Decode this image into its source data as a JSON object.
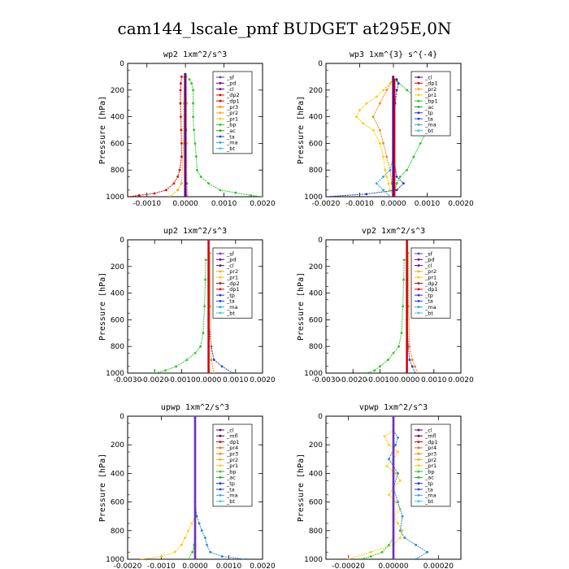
{
  "figure": {
    "title": "cam144_lscale_pmf  BUDGET at295E,0N"
  },
  "chart_data": [
    {
      "type": "line",
      "title": "wp2   1xm^2/s^3",
      "ylabel": "Pressure [hPa]",
      "xlim": [
        -0.0015,
        0.002
      ],
      "ylim": [
        1000,
        0
      ],
      "xticks": [
        -0.001,
        0.0,
        0.001,
        0.002
      ],
      "xtick_labels": [
        "-0.0010",
        "0.0000",
        "0.0010",
        "0.0020"
      ],
      "yticks": [
        0,
        200,
        400,
        600,
        800,
        1000
      ],
      "legend": [
        "_sf",
        "_pd",
        "_cl",
        "_dp2",
        "_dp1",
        "_pr3",
        "_pr2",
        "_pr1",
        "_bp",
        "_ac",
        "_ta",
        "_ma",
        "_bt"
      ],
      "series": [
        {
          "name": "_dp2",
          "color": "#dd0000",
          "y": [
            100,
            150,
            200,
            300,
            400,
            500,
            600,
            700,
            800,
            850,
            900,
            950,
            975,
            990,
            1000
          ],
          "x": [
            -0.0001,
            -0.00012,
            -0.00013,
            -0.00013,
            -0.00012,
            -0.00011,
            -0.0001,
            -0.0001,
            -0.00015,
            -0.0002,
            -0.0003,
            -0.0005,
            -0.0008,
            -0.0012,
            -0.0015
          ]
        },
        {
          "name": "_bp",
          "color": "#22cc22",
          "y": [
            120,
            150,
            200,
            300,
            400,
            500,
            600,
            700,
            800,
            850,
            900,
            950,
            970,
            990,
            1000
          ],
          "x": [
            0.0001,
            0.00016,
            0.0002,
            0.0002,
            0.0002,
            0.00022,
            0.00025,
            0.00028,
            0.0003,
            0.0004,
            0.0006,
            0.0009,
            0.0013,
            0.0017,
            0.002
          ]
        },
        {
          "name": "_pr1",
          "color": "#ffaa00",
          "y": [
            100,
            300,
            600,
            900,
            950,
            1000
          ],
          "x": [
            -3e-05,
            -4e-05,
            -5e-05,
            -0.0001,
            -0.0002,
            -0.0004
          ]
        },
        {
          "name": "_pr3",
          "color": "#ff8800",
          "y": [
            100,
            300,
            600,
            900,
            1000
          ],
          "x": [
            2e-05,
            3e-05,
            3e-05,
            4e-05,
            6e-05
          ]
        },
        {
          "name": "_ta",
          "color": "#2244cc",
          "y": [
            100,
            500,
            900,
            1000
          ],
          "x": [
            0.0,
            1e-05,
            2e-05,
            3e-05
          ]
        },
        {
          "name": "_sf",
          "color": "#6633cc",
          "y": [
            80,
            1000
          ],
          "x": [
            0.0,
            0.0
          ]
        },
        {
          "name": "_cl",
          "color": "#660088",
          "y": [
            80,
            1000
          ],
          "x": [
            -1e-05,
            -1e-05
          ]
        }
      ]
    },
    {
      "type": "line",
      "title": "wp3   1xm^{3} s^{-4}",
      "ylabel": "Pressure [hPa]",
      "xlim": [
        -0.002,
        0.002
      ],
      "ylim": [
        1000,
        0
      ],
      "xticks": [
        -0.002,
        -0.001,
        0.0,
        0.001,
        0.002
      ],
      "xtick_labels": [
        "-0.0020",
        "-0.0010",
        "0.0000",
        "0.0010",
        "0.0020"
      ],
      "yticks": [
        0,
        200,
        400,
        600,
        800,
        1000
      ],
      "legend": [
        "_cl",
        "_dp1",
        "_pr2",
        "_pr1",
        "_bp1",
        "_ac",
        "_tp",
        "_ta",
        "_ma",
        "_bt"
      ],
      "series": [
        {
          "name": "_pr1",
          "color": "#ffcc00",
          "y": [
            100,
            150,
            200,
            250,
            300,
            350,
            400,
            450,
            500,
            600,
            700,
            800,
            850,
            900,
            950,
            1000
          ],
          "x": [
            0.0,
            -0.0001,
            -0.0003,
            -0.0005,
            -0.0008,
            -0.001,
            -0.0011,
            -0.0009,
            -0.0006,
            -0.0004,
            -0.0003,
            -0.00025,
            -0.0002,
            -0.00015,
            -0.0001,
            0.0
          ]
        },
        {
          "name": "_pr2",
          "color": "#ee8800",
          "y": [
            120,
            200,
            300,
            400,
            500,
            600,
            700,
            800,
            900,
            1000
          ],
          "x": [
            0.0,
            -0.0002,
            -0.0004,
            -0.0006,
            -0.0004,
            -0.0003,
            -0.0002,
            -0.0001,
            -5e-05,
            0.0
          ]
        },
        {
          "name": "_bp1",
          "color": "#22cc22",
          "y": [
            130,
            200,
            300,
            400,
            450,
            500,
            600,
            700,
            800,
            850,
            900,
            950,
            1000
          ],
          "x": [
            0.0001,
            0.0004,
            0.0009,
            0.0014,
            0.0013,
            0.001,
            0.0008,
            0.0006,
            0.0004,
            0.0002,
            0.0001,
            5e-05,
            0.0
          ]
        },
        {
          "name": "_tp",
          "color": "#2233cc",
          "y": [
            120,
            150,
            200,
            300,
            500,
            700,
            850,
            900,
            950,
            980,
            1000
          ],
          "x": [
            0.0001,
            0.00015,
            0.0001,
            5e-05,
            0.0,
            0.0,
            0.0001,
            0.0003,
            0.0001,
            -0.0008,
            -0.002
          ]
        },
        {
          "name": "_ma",
          "color": "#33aacc",
          "y": [
            700,
            800,
            850,
            900,
            950,
            1000
          ],
          "x": [
            0.0,
            -0.0001,
            -0.0003,
            -0.0005,
            -0.0003,
            -0.0001
          ]
        },
        {
          "name": "_dp1",
          "color": "#dd0000",
          "y": [
            120,
            1000
          ],
          "x": [
            3e-05,
            3e-05
          ]
        },
        {
          "name": "_cl",
          "color": "#660088",
          "y": [
            100,
            1000
          ],
          "x": [
            -1e-05,
            -1e-05
          ]
        }
      ]
    },
    {
      "type": "line",
      "title": "up2   1xm^2/s^3",
      "ylabel": "Pressure [hPa]",
      "xlim": [
        -0.003,
        0.002
      ],
      "ylim": [
        1000,
        0
      ],
      "xticks": [
        -0.003,
        -0.002,
        -0.001,
        0.0,
        0.001,
        0.002
      ],
      "xtick_labels": [
        "-0.0030",
        "-0.0020",
        "-0.0010",
        "0.0000",
        "0.0010",
        "0.0020"
      ],
      "yticks": [
        0,
        200,
        400,
        600,
        800,
        1000
      ],
      "legend": [
        "_sf",
        "_pd",
        "_cl",
        "_pr2",
        "_pr1",
        "_dp2",
        "_dp1",
        "_tp",
        "_ta",
        "_ma",
        "_bt"
      ],
      "series": [
        {
          "name": "_dp2",
          "color": "#22cc22",
          "y": [
            150,
            300,
            500,
            700,
            800,
            850,
            900,
            950,
            980,
            1000
          ],
          "x": [
            -0.0001,
            -0.00012,
            -0.00015,
            -0.0002,
            -0.0003,
            -0.0005,
            -0.0008,
            -0.0012,
            -0.0016,
            -0.002
          ]
        },
        {
          "name": "_tp",
          "color": "#2244cc",
          "y": [
            300,
            600,
            800,
            900,
            950,
            1000
          ],
          "x": [
            0.0,
            0.0,
            0.0001,
            0.0002,
            0.0005,
            0.0009
          ]
        },
        {
          "name": "_pr2",
          "color": "#ff8800",
          "y": [
            100,
            500,
            900,
            1000
          ],
          "x": [
            5e-05,
            6e-05,
            0.0001,
            0.0002
          ]
        },
        {
          "name": "_sf",
          "color": "#6633cc",
          "y": [
            0,
            1000
          ],
          "x": [
            0.0,
            0.0
          ]
        },
        {
          "name": "_pd",
          "color": "#dd0000",
          "y": [
            0,
            1000
          ],
          "x": [
            0.0,
            0.0
          ]
        }
      ]
    },
    {
      "type": "line",
      "title": "vp2   1xm^2/s^3",
      "ylabel": "Pressure [hPa]",
      "xlim": [
        -0.003,
        0.002
      ],
      "ylim": [
        1000,
        0
      ],
      "xticks": [
        -0.003,
        -0.002,
        -0.001,
        0.0,
        0.001,
        0.002
      ],
      "xtick_labels": [
        "-0.0030",
        "-0.0020",
        "-0.0010",
        "0.0000",
        "0.0010",
        "0.0020"
      ],
      "yticks": [
        0,
        200,
        400,
        600,
        800,
        1000
      ],
      "legend": [
        "_sf",
        "_pd",
        "_cl",
        "_pr2",
        "_pr1",
        "_dp2",
        "_dp1",
        "_tp",
        "_ta",
        "_ma",
        "_bt"
      ],
      "series": [
        {
          "name": "_dp2",
          "color": "#22cc22",
          "y": [
            150,
            300,
            500,
            700,
            800,
            850,
            900,
            950,
            980,
            1000
          ],
          "x": [
            -0.0001,
            -0.00012,
            -0.00015,
            -0.0002,
            -0.0003,
            -0.0005,
            -0.0007,
            -0.001,
            -0.0012,
            -0.0015
          ]
        },
        {
          "name": "_tp",
          "color": "#2244cc",
          "y": [
            300,
            600,
            800,
            900,
            950,
            1000
          ],
          "x": [
            0.0,
            0.0,
            5e-05,
            0.0001,
            0.0002,
            0.0003
          ]
        },
        {
          "name": "_pr2",
          "color": "#ff8800",
          "y": [
            100,
            500,
            800,
            900,
            950,
            1000
          ],
          "x": [
            5e-05,
            6e-05,
            0.0001,
            0.0002,
            0.0003,
            0.0004
          ]
        },
        {
          "name": "_sf",
          "color": "#6633cc",
          "y": [
            0,
            1000
          ],
          "x": [
            0.0,
            0.0
          ]
        },
        {
          "name": "_pd",
          "color": "#dd0000",
          "y": [
            0,
            1000
          ],
          "x": [
            0.0,
            0.0
          ]
        }
      ]
    },
    {
      "type": "line",
      "title": "upwp   1xm^2/s^3",
      "ylabel": "Pressure [hPa]",
      "xlim": [
        -0.002,
        0.002
      ],
      "ylim": [
        1000,
        0
      ],
      "xticks": [
        -0.002,
        -0.001,
        0.0,
        0.001,
        0.002
      ],
      "xtick_labels": [
        "-0.0020",
        "-0.0010",
        "0.0000",
        "0.0010",
        "0.0020"
      ],
      "yticks": [
        0,
        200,
        400,
        600,
        800,
        1000
      ],
      "legend": [
        "_cl",
        "_mfl",
        "_dp1",
        "_pr4",
        "_pr3",
        "_pr2",
        "_pr1",
        "_bp",
        "_ac",
        "_tp",
        "_ta",
        "_ma",
        "_bt"
      ],
      "series": [
        {
          "name": "_pr1",
          "color": "#ffcc00",
          "y": [
            700,
            750,
            800,
            850,
            900,
            950,
            980,
            1000
          ],
          "x": [
            0.0,
            -0.0001,
            -0.0002,
            -0.0003,
            -0.0004,
            -0.0006,
            -0.001,
            -0.0016
          ]
        },
        {
          "name": "_tp",
          "color": "#2288cc",
          "y": [
            600,
            700,
            750,
            800,
            850,
            900,
            950,
            980,
            1000
          ],
          "x": [
            0.0,
            5e-05,
            0.00012,
            0.0002,
            0.0003,
            0.00035,
            0.00045,
            0.0008,
            0.0015
          ]
        },
        {
          "name": "_bp",
          "color": "#22cc22",
          "y": [
            850,
            900,
            950,
            1000
          ],
          "x": [
            0.0,
            -3e-05,
            -8e-05,
            -0.0002
          ]
        },
        {
          "name": "_dp1",
          "color": "#dd0000",
          "y": [
            0,
            1000
          ],
          "x": [
            0.0,
            0.0
          ]
        },
        {
          "name": "_cl",
          "color": "#6633cc",
          "y": [
            0,
            1000
          ],
          "x": [
            0.0,
            0.0
          ]
        }
      ]
    },
    {
      "type": "line",
      "title": "vpwp   1xm^2/s^3",
      "ylabel": "Pressure [hPa]",
      "xlim": [
        -0.0003,
        0.0003
      ],
      "ylim": [
        1000,
        0
      ],
      "xticks": [
        -0.0002,
        0.0,
        0.0002
      ],
      "xtick_labels": [
        "-0.00020",
        "0.00000",
        "0.00020"
      ],
      "yticks": [
        0,
        200,
        400,
        600,
        800,
        1000
      ],
      "legend": [
        "_cl",
        "_mfl",
        "_dp1",
        "_pr4",
        "_pr3",
        "_pr2",
        "_pr1",
        "_bp",
        "_ac",
        "_tp",
        "_ta",
        "_ma",
        "_bt"
      ],
      "series": [
        {
          "name": "_pr1",
          "color": "#ffcc00",
          "y": [
            100,
            140,
            200,
            250,
            300,
            350,
            400,
            450,
            500,
            550,
            600,
            650,
            700,
            750,
            800,
            850,
            900,
            950,
            1000
          ],
          "x": [
            0.0,
            -4e-05,
            -2e-05,
            2e-05,
            0.0,
            -3e-05,
            1e-05,
            3e-05,
            0.0,
            -2e-05,
            1e-05,
            3e-05,
            0.0,
            2e-05,
            4e-05,
            3e-05,
            0.0,
            -0.0001,
            -0.0002
          ]
        },
        {
          "name": "_tp",
          "color": "#2288cc",
          "y": [
            100,
            150,
            200,
            300,
            400,
            500,
            600,
            700,
            800,
            850,
            900,
            950,
            1000
          ],
          "x": [
            0.0,
            2e-05,
            1e-05,
            -2e-05,
            2e-05,
            0.0,
            2e-05,
            4e-05,
            3e-05,
            5e-05,
            0.0001,
            0.00015,
            0.0001
          ]
        },
        {
          "name": "_bp",
          "color": "#22cc22",
          "y": [
            850,
            900,
            950,
            980,
            1000
          ],
          "x": [
            0.0,
            -2e-05,
            -5e-05,
            -0.0001,
            -0.00015
          ]
        },
        {
          "name": "_dp1",
          "color": "#dd0000",
          "y": [
            0,
            1000
          ],
          "x": [
            0.0,
            0.0
          ]
        },
        {
          "name": "_cl",
          "color": "#6633cc",
          "y": [
            0,
            1000
          ],
          "x": [
            0.0,
            0.0
          ]
        }
      ]
    }
  ]
}
